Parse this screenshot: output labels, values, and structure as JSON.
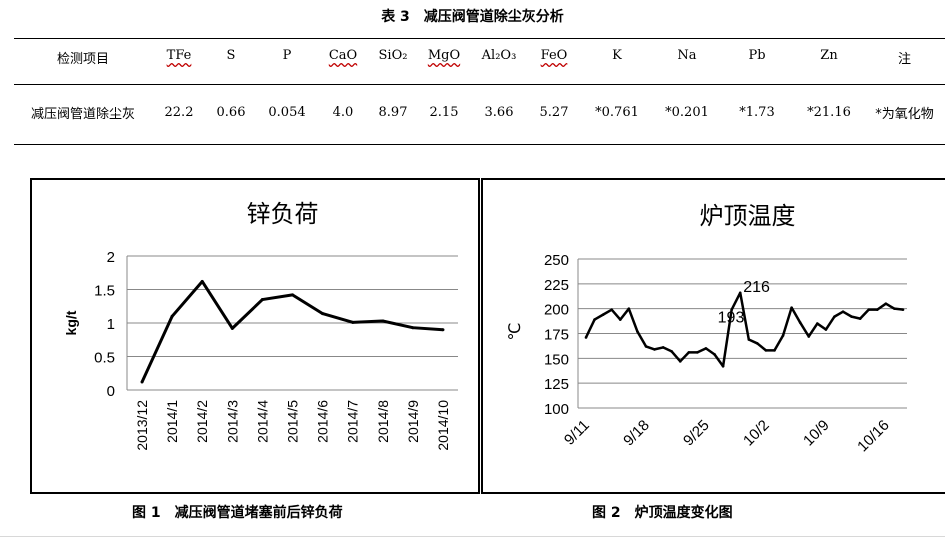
{
  "table": {
    "title": "表 3　减压阀管道除尘灰分析",
    "headers": [
      "检测项目",
      "TFe",
      "S",
      "P",
      "CaO",
      "SiO₂",
      "MgO",
      "Al₂O₃",
      "FeO",
      "K",
      "Na",
      "Pb",
      "Zn",
      "注"
    ],
    "row": [
      "减压阀管道除尘灰",
      "22.2",
      "0.66",
      "0.054",
      "4.0",
      "8.97",
      "2.15",
      "3.66",
      "5.27",
      "*0.761",
      "*0.201",
      "*1.73",
      "*21.16",
      "*为氧化物"
    ]
  },
  "chart_data": [
    {
      "type": "line",
      "title": "锌负荷",
      "xlabel": "",
      "ylabel": "kg/t",
      "categories": [
        "2013/12",
        "2014/1",
        "2014/2",
        "2014/3",
        "2014/4",
        "2014/5",
        "2014/6",
        "2014/7",
        "2014/8",
        "2014/9",
        "2014/10"
      ],
      "series": [
        {
          "values": [
            0.12,
            1.1,
            1.62,
            0.92,
            1.35,
            1.42,
            1.14,
            1.01,
            1.03,
            0.93,
            0.9
          ]
        }
      ],
      "ylim": [
        0,
        2
      ],
      "yticks": [
        "0",
        "0.5",
        "1",
        "1.5",
        "2"
      ],
      "grid": true,
      "color": "#000000"
    },
    {
      "type": "line",
      "title": "炉顶温度",
      "xlabel": "",
      "ylabel": "℃",
      "xticks": [
        "9/11",
        "9/18",
        "9/25",
        "10/2",
        "10/9",
        "10/16"
      ],
      "series": [
        {
          "values": [
            171,
            189,
            194,
            199,
            189,
            200,
            177,
            162,
            159,
            161,
            157,
            147,
            156,
            156,
            160,
            154,
            142,
            199,
            216,
            169,
            165,
            158,
            158,
            173,
            201,
            186,
            172,
            185,
            179,
            192,
            197,
            192,
            190,
            199,
            199,
            205,
            200,
            199
          ]
        }
      ],
      "ylim": [
        100,
        250
      ],
      "yticks": [
        "100",
        "125",
        "150",
        "175",
        "200",
        "225",
        "250"
      ],
      "annotations": [
        "216",
        "193"
      ],
      "grid": true,
      "color": "#000000"
    }
  ],
  "captions": {
    "fig1": "图 1　减压阀管道堵塞前后锌负荷",
    "fig2": "图 2　炉顶温度变化图"
  }
}
